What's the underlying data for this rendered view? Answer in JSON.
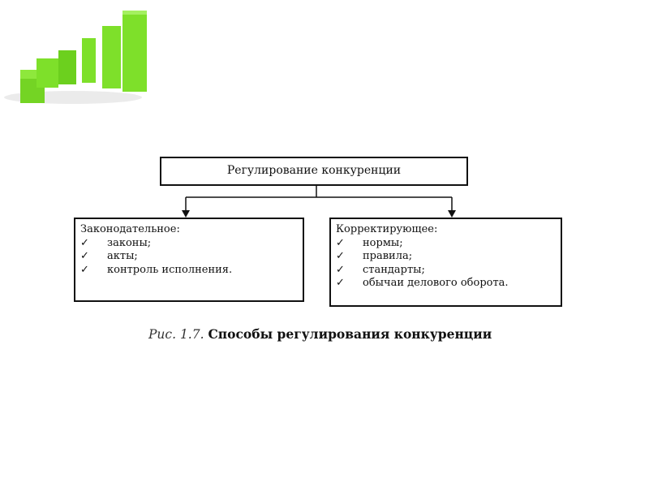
{
  "colors": {
    "logo_green": "#7ee02a",
    "line": "#111111"
  },
  "logo": {
    "icon": "green-3d-bar-chart-icon"
  },
  "diagram": {
    "root": "Регулирование конкуренции",
    "left": {
      "title": "Законодательное:",
      "items": [
        "законы;",
        "акты;",
        "контроль исполнения."
      ]
    },
    "right": {
      "title": "Корректирующее:",
      "items": [
        "нормы;",
        "правила;",
        "стандарты;",
        "обычаи делового оборота."
      ]
    },
    "check_glyph": "✓"
  },
  "caption": {
    "label": "Рис. 1.7.",
    "text": "Способы регулирования конкуренции"
  }
}
